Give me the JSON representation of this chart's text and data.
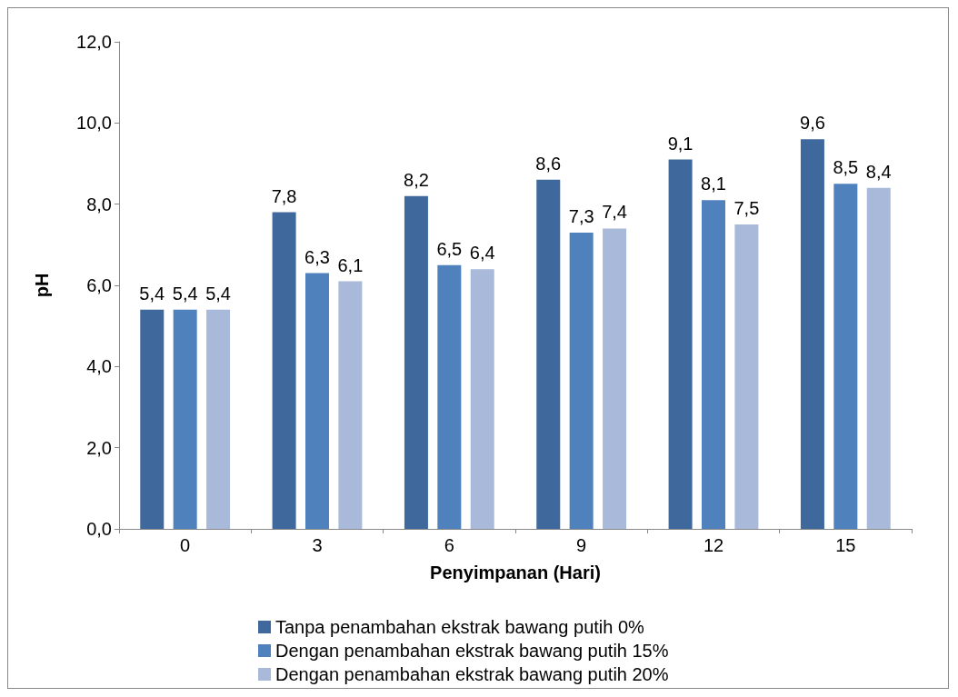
{
  "chart_data": {
    "type": "bar",
    "xlabel": "Penyimpanan (Hari)",
    "ylabel": "pH",
    "categories": [
      "0",
      "3",
      "6",
      "9",
      "12",
      "15"
    ],
    "series": [
      {
        "name": "Tanpa penambahan ekstrak bawang putih 0%",
        "color": "#3f689c",
        "values": [
          5.4,
          7.8,
          8.2,
          8.6,
          9.1,
          9.6
        ],
        "value_labels": [
          "5,4",
          "7,8",
          "8,2",
          "8,6",
          "9,1",
          "9,6"
        ]
      },
      {
        "name": "Dengan penambahan ekstrak bawang putih 15%",
        "color": "#4f81bd",
        "values": [
          5.4,
          6.3,
          6.5,
          7.3,
          8.1,
          8.5
        ],
        "value_labels": [
          "5,4",
          "6,3",
          "6,5",
          "7,3",
          "8,1",
          "8,5"
        ]
      },
      {
        "name": "Dengan penambahan ekstrak bawang putih 20%",
        "color": "#a9b9d9",
        "values": [
          5.4,
          6.1,
          6.4,
          7.4,
          7.5,
          8.4
        ],
        "value_labels": [
          "5,4",
          "6,1",
          "6,4",
          "7,4",
          "7,5",
          "8,4"
        ]
      }
    ],
    "ylim": [
      0,
      12
    ],
    "yticks": [
      {
        "value": 0,
        "label": "0,0"
      },
      {
        "value": 2,
        "label": "2,0"
      },
      {
        "value": 4,
        "label": "4,0"
      },
      {
        "value": 6,
        "label": "6,0"
      },
      {
        "value": 8,
        "label": "8,0"
      },
      {
        "value": 10,
        "label": "10,0"
      },
      {
        "value": 12,
        "label": "12,0"
      }
    ],
    "grid": false,
    "legend": "bottom"
  }
}
